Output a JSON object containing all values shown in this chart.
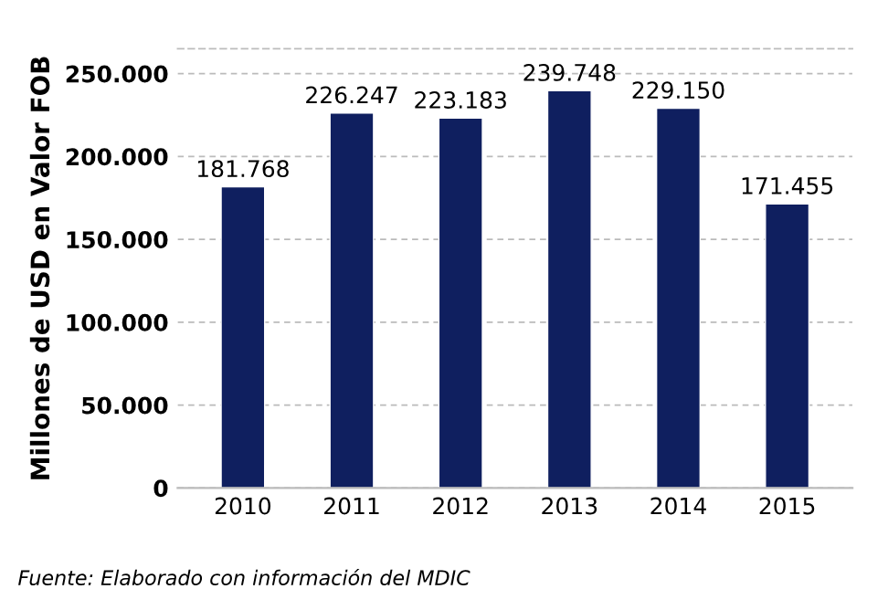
{
  "chart_data": {
    "type": "bar",
    "ylabel": "Millones de USD en Valor FOB",
    "categories": [
      "2010",
      "2011",
      "2012",
      "2013",
      "2014",
      "2015"
    ],
    "values": [
      181768,
      226247,
      223183,
      239748,
      229150,
      171455
    ],
    "value_labels": [
      "181.768",
      "226.247",
      "223.183",
      "239.748",
      "229.150",
      "171.455"
    ],
    "color": "#0f1f5f",
    "ylim": [
      0,
      265000
    ],
    "yticks": [
      {
        "value": 0,
        "label": "0"
      },
      {
        "value": 50000,
        "label": "50.000"
      },
      {
        "value": 100000,
        "label": "100.000"
      },
      {
        "value": 150000,
        "label": "150.000"
      },
      {
        "value": 200000,
        "label": "200.000"
      },
      {
        "value": 250000,
        "label": "250.000"
      }
    ],
    "grid": "y",
    "annotations": [
      "Fuente: Elaborado con información del MDIC"
    ]
  }
}
